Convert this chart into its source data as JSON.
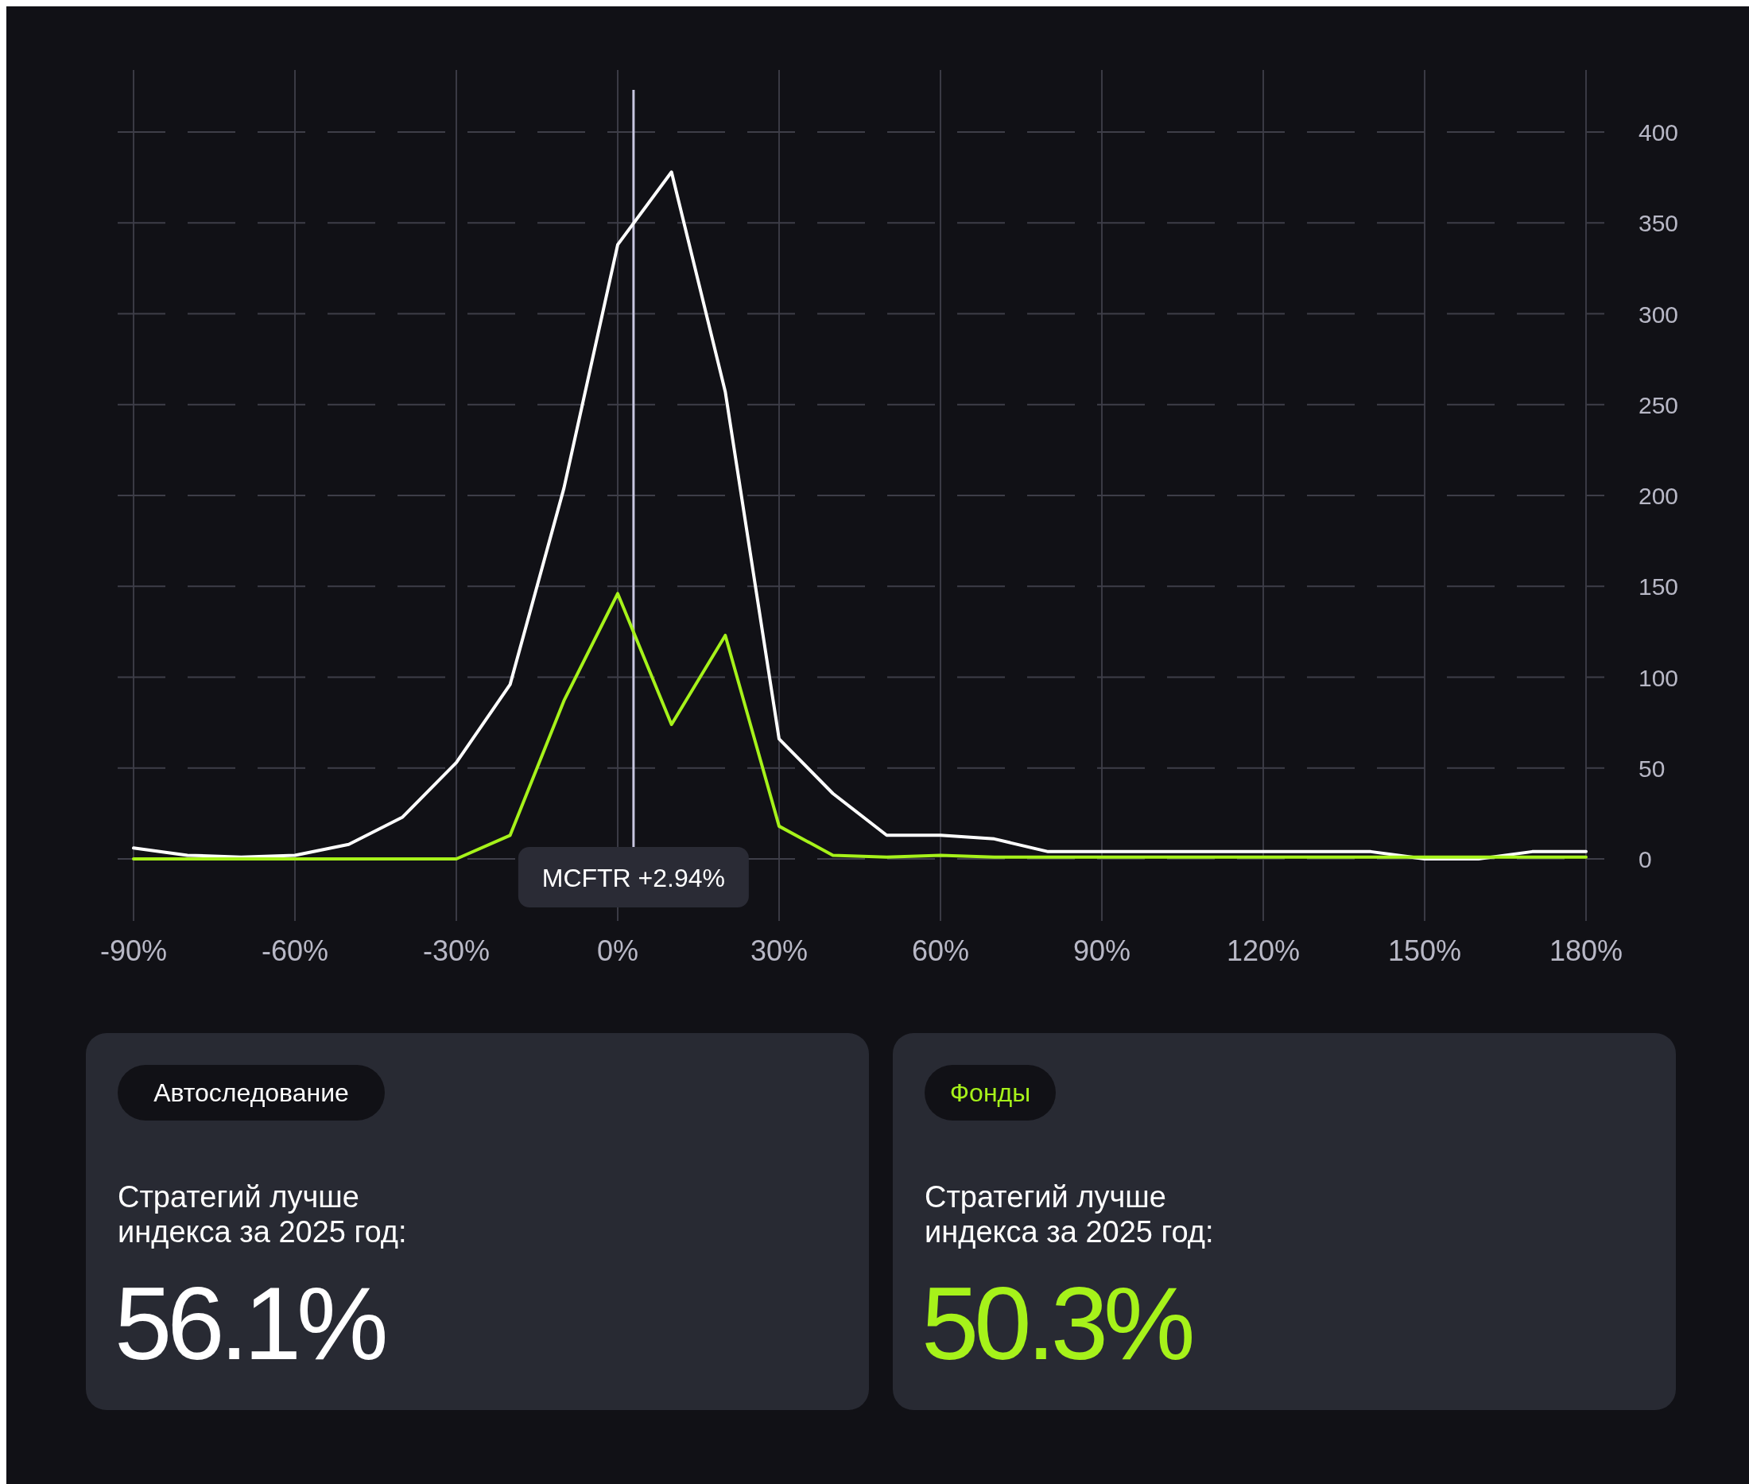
{
  "chart_data": {
    "type": "line",
    "x": [
      -90,
      -80,
      -70,
      -60,
      -50,
      -40,
      -30,
      -20,
      -10,
      0,
      10,
      20,
      30,
      40,
      50,
      60,
      70,
      80,
      90,
      100,
      110,
      120,
      130,
      140,
      150,
      160,
      170,
      180
    ],
    "series": [
      {
        "name": "Автоследование",
        "color": "#ffffff",
        "values": [
          6,
          2,
          1,
          2,
          8,
          23,
          53,
          96,
          204,
          338,
          378,
          257,
          66,
          36,
          13,
          13,
          11,
          4,
          4,
          4,
          4,
          4,
          4,
          4,
          0,
          0,
          4,
          4
        ]
      },
      {
        "name": "Фонды",
        "color": "#a6f21a",
        "values": [
          0,
          0,
          0,
          0,
          0,
          0,
          0,
          13,
          87,
          146,
          74,
          123,
          18,
          2,
          1,
          2,
          1,
          1,
          1,
          1,
          1,
          1,
          1,
          1,
          1,
          1,
          1,
          1
        ]
      }
    ],
    "xlim": [
      -90,
      180
    ],
    "xticks": [
      {
        "value": -90,
        "label": "-90%"
      },
      {
        "value": -60,
        "label": "-60%"
      },
      {
        "value": -30,
        "label": "-30%"
      },
      {
        "value": 0,
        "label": "0%"
      },
      {
        "value": 30,
        "label": "30%"
      },
      {
        "value": 60,
        "label": "60%"
      },
      {
        "value": 90,
        "label": "90%"
      },
      {
        "value": 120,
        "label": "120%"
      },
      {
        "value": 150,
        "label": "150%"
      },
      {
        "value": 180,
        "label": "180%"
      }
    ],
    "ylim": [
      0,
      400
    ],
    "yticks": [
      0,
      50,
      100,
      150,
      200,
      250,
      300,
      350,
      400
    ],
    "grid": true,
    "legend": "bottom",
    "marker": "none",
    "line_style": "solid",
    "ref_lines": [
      {
        "axis": "x",
        "value": 2.94,
        "label": "MCFTR +2.94%",
        "color": "#c8c6e0"
      }
    ],
    "annotations": [
      "Стратегий лучше\nиндекса за 2025 год:",
      "56.1%",
      "Стратегий лучше\nиндекса за 2025 год:",
      "50.3%"
    ]
  }
}
